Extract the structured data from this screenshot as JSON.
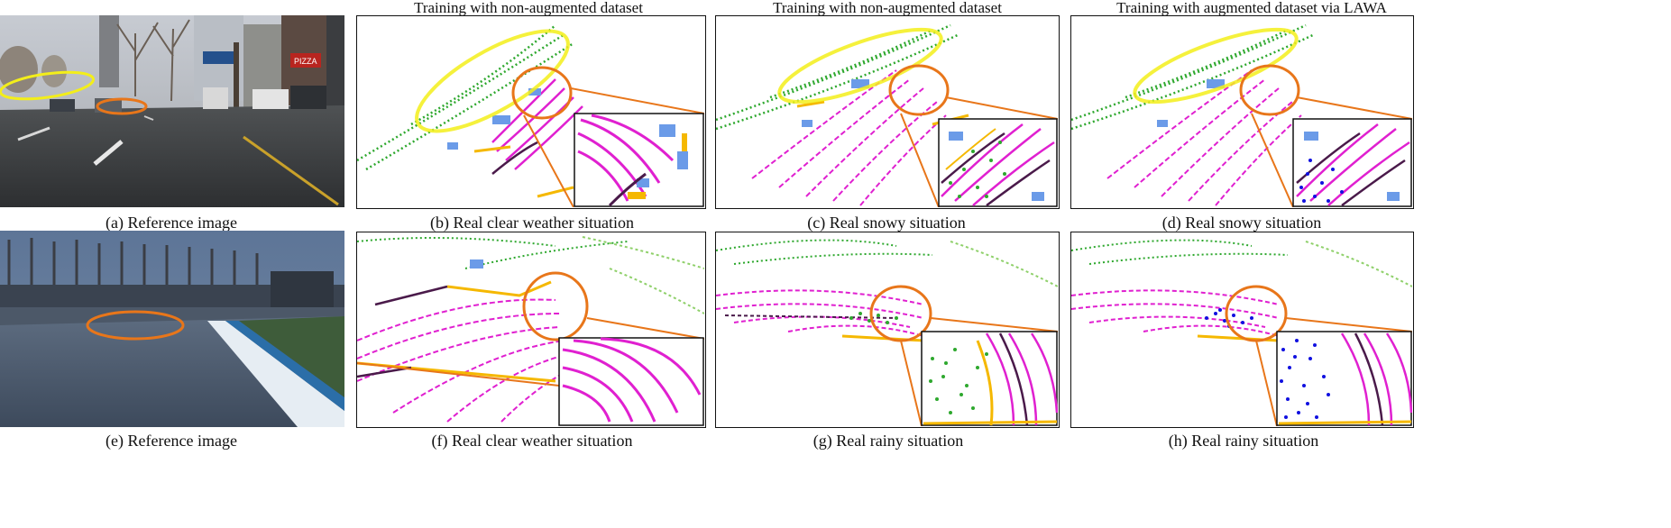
{
  "column_headers": [
    "Training with non-augmented  dataset",
    "Training with non-augmented  dataset",
    "Training with augmented  dataset via LAWA"
  ],
  "row1": {
    "captions": [
      "(a) Reference image",
      "(b) Real clear weather situation",
      "(c) Real snowy situation",
      "(d) Real snowy situation"
    ],
    "photo_signs": [
      "PIZZA"
    ]
  },
  "row2": {
    "captions": [
      "(e) Reference image",
      "(f) Real clear weather situation",
      "(g) Real rainy situation",
      "(h) Real rainy situation"
    ]
  },
  "colors": {
    "vegetation": "#2ea82e",
    "light_vegetation": "#8fd06a",
    "road_ring": "#e020d0",
    "curb": "#4a1a4a",
    "car": "#6b9be8",
    "sidewalk": "#f5b800",
    "noise_blue": "#1010e0",
    "highlight_yellow": "#f3ee1a",
    "highlight_orange": "#e8761a",
    "zoom_line": "#e8761a"
  }
}
